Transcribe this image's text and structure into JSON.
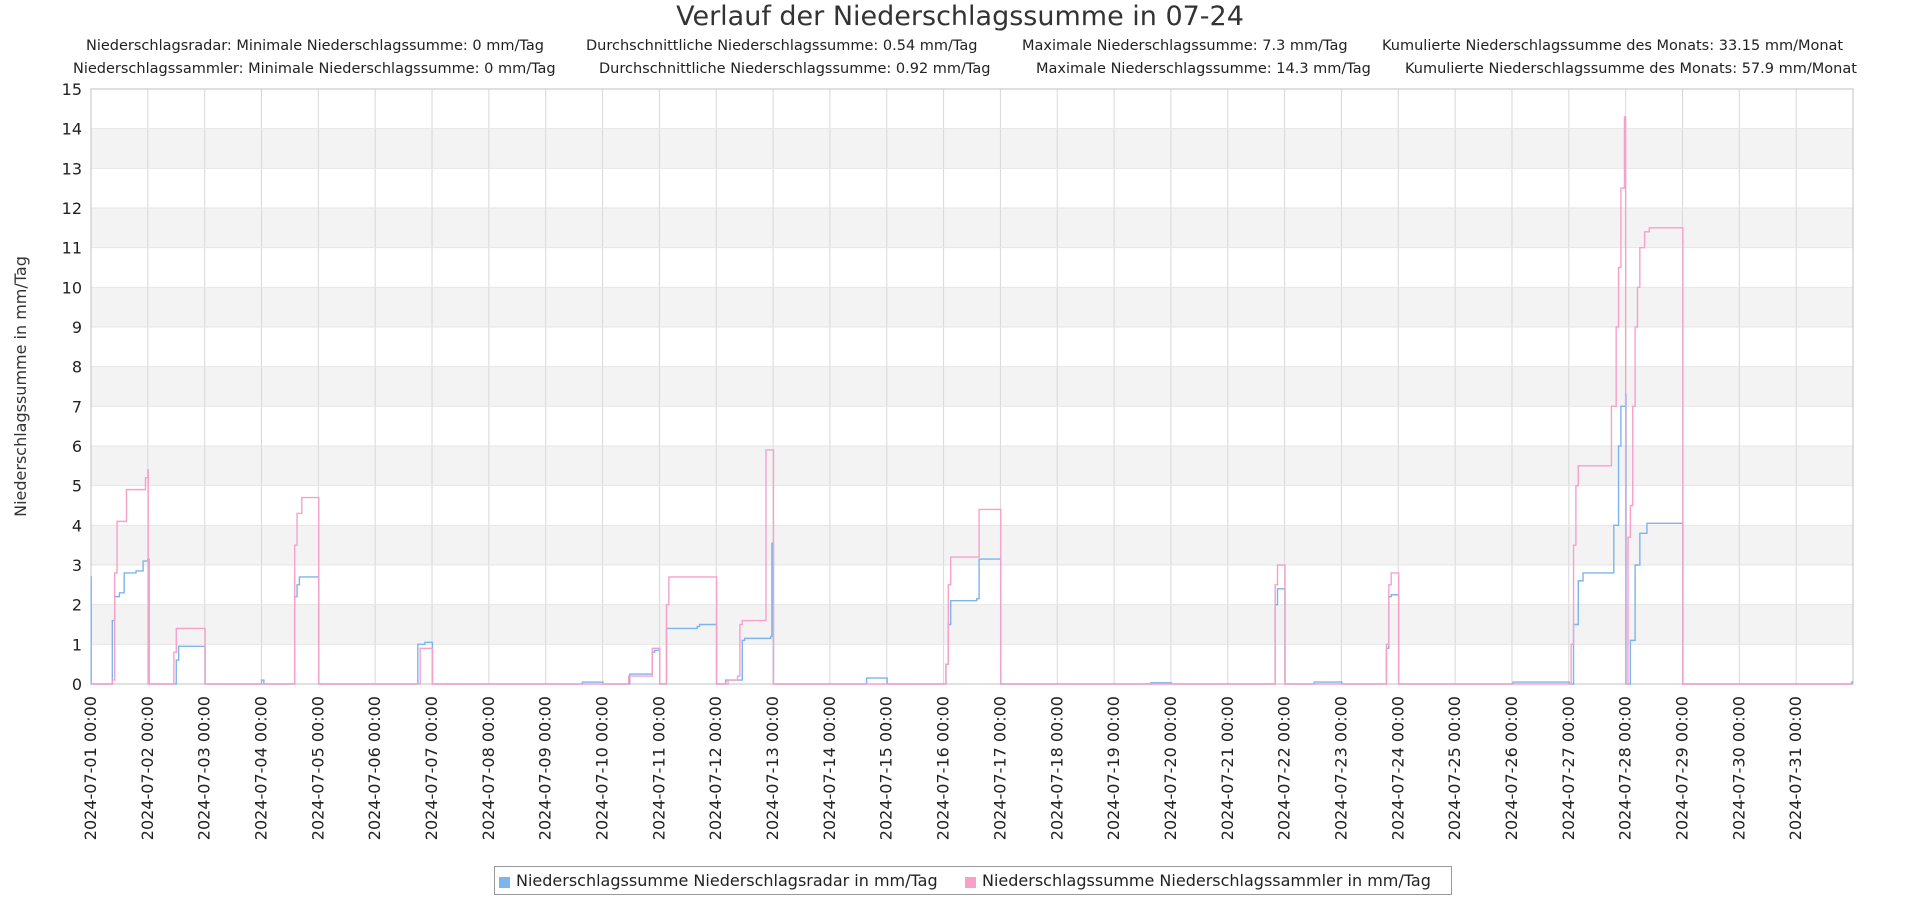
{
  "title": "Verlauf der Niederschlagssumme in 07-24",
  "stats": {
    "radar": [
      "Niederschlagsradar: Minimale Niederschlagssumme: 0 mm/Tag",
      "Durchschnittliche Niederschlagssumme: 0.54 mm/Tag",
      "Maximale Niederschlagssumme: 7.3 mm/Tag",
      "Kumulierte Niederschlagssumme des Monats: 33.15 mm/Monat"
    ],
    "sammler": [
      "Niederschlagssammler: Minimale Niederschlagssumme: 0 mm/Tag",
      "Durchschnittliche Niederschlagssumme: 0.92 mm/Tag",
      "Maximale Niederschlagssumme: 14.3 mm/Tag",
      "Kumulierte Niederschlagssumme des Monats: 57.9 mm/Monat"
    ]
  },
  "legend": {
    "radar_label": "Niederschlagssumme Niederschlagsradar in mm/Tag",
    "sammler_label": "Niederschlagssumme Niederschlagssammler in mm/Tag"
  },
  "chart_data": {
    "type": "line",
    "ylabel": "Niederschlagssumme in mm/Tag",
    "ylim": [
      0,
      15
    ],
    "yticks": [
      0,
      1,
      2,
      3,
      4,
      5,
      6,
      7,
      8,
      9,
      10,
      11,
      12,
      13,
      14,
      15
    ],
    "xlim": [
      "2024-07-01 00:00",
      "2024-08-01 00:00"
    ],
    "xticks": [
      "2024-07-01 00:00",
      "2024-07-02 00:00",
      "2024-07-03 00:00",
      "2024-07-04 00:00",
      "2024-07-05 00:00",
      "2024-07-06 00:00",
      "2024-07-07 00:00",
      "2024-07-08 00:00",
      "2024-07-09 00:00",
      "2024-07-10 00:00",
      "2024-07-11 00:00",
      "2024-07-12 00:00",
      "2024-07-13 00:00",
      "2024-07-14 00:00",
      "2024-07-15 00:00",
      "2024-07-16 00:00",
      "2024-07-17 00:00",
      "2024-07-18 00:00",
      "2024-07-19 00:00",
      "2024-07-20 00:00",
      "2024-07-21 00:00",
      "2024-07-22 00:00",
      "2024-07-23 00:00",
      "2024-07-24 00:00",
      "2024-07-25 00:00",
      "2024-07-26 00:00",
      "2024-07-27 00:00",
      "2024-07-28 00:00",
      "2024-07-29 00:00",
      "2024-07-30 00:00",
      "2024-07-31 00:00"
    ],
    "grid": true,
    "legend_position": "bottom",
    "series": [
      {
        "name": "Niederschlagssumme Niederschlagsradar in mm/Tag",
        "color": "#7cb5ec",
        "points": [
          [
            "2024-07-01 00:00",
            2.7
          ],
          [
            "2024-07-01 00:05",
            0
          ],
          [
            "2024-07-01 08:00",
            0
          ],
          [
            "2024-07-01 09:00",
            1.6
          ],
          [
            "2024-07-01 10:00",
            2.2
          ],
          [
            "2024-07-01 12:00",
            2.3
          ],
          [
            "2024-07-01 14:00",
            2.8
          ],
          [
            "2024-07-01 19:00",
            2.85
          ],
          [
            "2024-07-01 22:00",
            3.1
          ],
          [
            "2024-07-02 00:00",
            3.15
          ],
          [
            "2024-07-02 00:30",
            0
          ],
          [
            "2024-07-02 11:00",
            0
          ],
          [
            "2024-07-02 12:00",
            0.6
          ],
          [
            "2024-07-02 13:00",
            0.95
          ],
          [
            "2024-07-03 00:00",
            0.95
          ],
          [
            "2024-07-03 00:10",
            0
          ],
          [
            "2024-07-03 23:00",
            0
          ],
          [
            "2024-07-04 00:00",
            0.1
          ],
          [
            "2024-07-04 01:00",
            0
          ],
          [
            "2024-07-04 13:00",
            0
          ],
          [
            "2024-07-04 14:00",
            2.2
          ],
          [
            "2024-07-04 15:00",
            2.5
          ],
          [
            "2024-07-04 16:00",
            2.7
          ],
          [
            "2024-07-05 00:00",
            2.7
          ],
          [
            "2024-07-05 00:10",
            0
          ],
          [
            "2024-07-06 17:00",
            0
          ],
          [
            "2024-07-06 18:00",
            1.0
          ],
          [
            "2024-07-06 21:00",
            1.05
          ],
          [
            "2024-07-07 00:00",
            1.05
          ],
          [
            "2024-07-07 00:10",
            0
          ],
          [
            "2024-07-09 15:00",
            0
          ],
          [
            "2024-07-09 15:30",
            0.05
          ],
          [
            "2024-07-10 00:00",
            0.05
          ],
          [
            "2024-07-10 00:10",
            0
          ],
          [
            "2024-07-10 11:00",
            0
          ],
          [
            "2024-07-10 11:30",
            0.25
          ],
          [
            "2024-07-10 20:00",
            0.25
          ],
          [
            "2024-07-10 21:00",
            0.8
          ],
          [
            "2024-07-10 22:00",
            0.85
          ],
          [
            "2024-07-11 00:00",
            0.85
          ],
          [
            "2024-07-11 00:10",
            0
          ],
          [
            "2024-07-11 02:00",
            0
          ],
          [
            "2024-07-11 03:00",
            1.4
          ],
          [
            "2024-07-11 16:00",
            1.45
          ],
          [
            "2024-07-11 17:00",
            1.5
          ],
          [
            "2024-07-12 00:00",
            1.5
          ],
          [
            "2024-07-12 00:10",
            0
          ],
          [
            "2024-07-12 03:00",
            0
          ],
          [
            "2024-07-12 04:00",
            0.1
          ],
          [
            "2024-07-12 10:00",
            0.1
          ],
          [
            "2024-07-12 11:00",
            1.1
          ],
          [
            "2024-07-12 12:00",
            1.15
          ],
          [
            "2024-07-12 23:00",
            1.2
          ],
          [
            "2024-07-12 23:30",
            3.55
          ],
          [
            "2024-07-13 00:00",
            3.55
          ],
          [
            "2024-07-13 00:10",
            0
          ],
          [
            "2024-07-14 15:00",
            0
          ],
          [
            "2024-07-14 15:30",
            0.15
          ],
          [
            "2024-07-15 00:00",
            0.15
          ],
          [
            "2024-07-15 00:10",
            0
          ],
          [
            "2024-07-16 00:00",
            0
          ],
          [
            "2024-07-16 01:00",
            0.5
          ],
          [
            "2024-07-16 02:00",
            1.5
          ],
          [
            "2024-07-16 03:00",
            2.1
          ],
          [
            "2024-07-16 14:00",
            2.15
          ],
          [
            "2024-07-16 15:00",
            3.15
          ],
          [
            "2024-07-17 00:00",
            3.15
          ],
          [
            "2024-07-17 00:10",
            0
          ],
          [
            "2024-07-19 15:00",
            0
          ],
          [
            "2024-07-19 15:30",
            0.03
          ],
          [
            "2024-07-20 00:00",
            0.03
          ],
          [
            "2024-07-20 00:10",
            0
          ],
          [
            "2024-07-21 19:00",
            0
          ],
          [
            "2024-07-21 20:00",
            2.0
          ],
          [
            "2024-07-21 21:00",
            2.4
          ],
          [
            "2024-07-22 00:00",
            2.4
          ],
          [
            "2024-07-22 00:10",
            0
          ],
          [
            "2024-07-22 12:00",
            0
          ],
          [
            "2024-07-22 12:30",
            0.05
          ],
          [
            "2024-07-23 00:00",
            0.05
          ],
          [
            "2024-07-23 00:10",
            0
          ],
          [
            "2024-07-23 18:00",
            0
          ],
          [
            "2024-07-23 19:00",
            0.9
          ],
          [
            "2024-07-23 20:00",
            2.2
          ],
          [
            "2024-07-23 21:00",
            2.25
          ],
          [
            "2024-07-24 00:00",
            2.25
          ],
          [
            "2024-07-24 00:10",
            0
          ],
          [
            "2024-07-26 00:00",
            0
          ],
          [
            "2024-07-26 00:30",
            0.05
          ],
          [
            "2024-07-27 00:00",
            0.05
          ],
          [
            "2024-07-27 00:10",
            0
          ],
          [
            "2024-07-27 01:00",
            0
          ],
          [
            "2024-07-27 02:00",
            1.5
          ],
          [
            "2024-07-27 04:00",
            2.6
          ],
          [
            "2024-07-27 06:00",
            2.8
          ],
          [
            "2024-07-27 17:00",
            2.8
          ],
          [
            "2024-07-27 19:00",
            4.0
          ],
          [
            "2024-07-27 21:00",
            6.0
          ],
          [
            "2024-07-27 22:00",
            7.0
          ],
          [
            "2024-07-28 00:00",
            7.3
          ],
          [
            "2024-07-28 00:10",
            0
          ],
          [
            "2024-07-28 01:00",
            0
          ],
          [
            "2024-07-28 02:00",
            1.1
          ],
          [
            "2024-07-28 04:00",
            3.0
          ],
          [
            "2024-07-28 06:00",
            3.8
          ],
          [
            "2024-07-28 09:00",
            4.05
          ],
          [
            "2024-07-29 00:00",
            4.05
          ],
          [
            "2024-07-29 00:10",
            0
          ],
          [
            "2024-07-31 23:00",
            0
          ],
          [
            "2024-07-31 23:30",
            0.05
          ],
          [
            "2024-08-01 00:00",
            0.05
          ]
        ]
      },
      {
        "name": "Niederschlagssumme Niederschlagssammler in mm/Tag",
        "color": "#f7a1c9",
        "points": [
          [
            "2024-07-01 00:00",
            0
          ],
          [
            "2024-07-01 08:00",
            0
          ],
          [
            "2024-07-01 09:00",
            0.1
          ],
          [
            "2024-07-01 10:00",
            2.8
          ],
          [
            "2024-07-01 11:00",
            4.1
          ],
          [
            "2024-07-01 14:00",
            4.1
          ],
          [
            "2024-07-01 15:00",
            4.9
          ],
          [
            "2024-07-01 22:00",
            4.9
          ],
          [
            "2024-07-01 23:00",
            5.2
          ],
          [
            "2024-07-02 00:00",
            5.4
          ],
          [
            "2024-07-02 00:10",
            0
          ],
          [
            "2024-07-02 10:00",
            0
          ],
          [
            "2024-07-02 11:00",
            0.8
          ],
          [
            "2024-07-02 12:00",
            1.4
          ],
          [
            "2024-07-03 00:00",
            1.4
          ],
          [
            "2024-07-03 00:10",
            0
          ],
          [
            "2024-07-04 13:00",
            0
          ],
          [
            "2024-07-04 14:00",
            3.5
          ],
          [
            "2024-07-04 15:00",
            4.3
          ],
          [
            "2024-07-04 17:00",
            4.7
          ],
          [
            "2024-07-05 00:00",
            4.7
          ],
          [
            "2024-07-05 00:10",
            0
          ],
          [
            "2024-07-06 18:00",
            0
          ],
          [
            "2024-07-06 19:00",
            0.9
          ],
          [
            "2024-07-07 00:00",
            0.9
          ],
          [
            "2024-07-07 00:10",
            0
          ],
          [
            "2024-07-10 10:00",
            0
          ],
          [
            "2024-07-10 11:00",
            0.2
          ],
          [
            "2024-07-10 20:00",
            0.2
          ],
          [
            "2024-07-10 21:00",
            0.9
          ],
          [
            "2024-07-11 00:00",
            0.9
          ],
          [
            "2024-07-11 00:10",
            0
          ],
          [
            "2024-07-11 02:00",
            0
          ],
          [
            "2024-07-11 03:00",
            2.0
          ],
          [
            "2024-07-11 04:00",
            2.7
          ],
          [
            "2024-07-12 00:00",
            2.7
          ],
          [
            "2024-07-12 00:10",
            0
          ],
          [
            "2024-07-12 04:00",
            0
          ],
          [
            "2024-07-12 05:00",
            0.1
          ],
          [
            "2024-07-12 09:00",
            0.2
          ],
          [
            "2024-07-12 10:00",
            1.5
          ],
          [
            "2024-07-12 11:00",
            1.6
          ],
          [
            "2024-07-12 20:00",
            1.6
          ],
          [
            "2024-07-12 21:00",
            5.9
          ],
          [
            "2024-07-13 00:00",
            5.9
          ],
          [
            "2024-07-13 00:10",
            0
          ],
          [
            "2024-07-16 00:00",
            0
          ],
          [
            "2024-07-16 01:00",
            0.5
          ],
          [
            "2024-07-16 02:00",
            2.5
          ],
          [
            "2024-07-16 03:00",
            3.2
          ],
          [
            "2024-07-16 14:00",
            3.2
          ],
          [
            "2024-07-16 15:00",
            4.4
          ],
          [
            "2024-07-17 00:00",
            4.4
          ],
          [
            "2024-07-17 00:10",
            0
          ],
          [
            "2024-07-21 19:00",
            0
          ],
          [
            "2024-07-21 20:00",
            2.5
          ],
          [
            "2024-07-21 21:00",
            3.0
          ],
          [
            "2024-07-22 00:00",
            3.0
          ],
          [
            "2024-07-22 00:10",
            0
          ],
          [
            "2024-07-23 18:00",
            0
          ],
          [
            "2024-07-23 19:00",
            1.0
          ],
          [
            "2024-07-23 20:00",
            2.5
          ],
          [
            "2024-07-23 21:00",
            2.8
          ],
          [
            "2024-07-24 00:00",
            2.8
          ],
          [
            "2024-07-24 00:10",
            0
          ],
          [
            "2024-07-27 00:00",
            0
          ],
          [
            "2024-07-27 01:00",
            1.0
          ],
          [
            "2024-07-27 02:00",
            3.5
          ],
          [
            "2024-07-27 03:00",
            5.0
          ],
          [
            "2024-07-27 04:00",
            5.5
          ],
          [
            "2024-07-27 16:00",
            5.5
          ],
          [
            "2024-07-27 18:00",
            7.0
          ],
          [
            "2024-07-27 20:00",
            9.0
          ],
          [
            "2024-07-27 21:00",
            10.5
          ],
          [
            "2024-07-27 22:00",
            12.5
          ],
          [
            "2024-07-27 23:30",
            14.3
          ],
          [
            "2024-07-28 00:00",
            0
          ],
          [
            "2024-07-28 00:30",
            0
          ],
          [
            "2024-07-28 01:00",
            3.7
          ],
          [
            "2024-07-28 02:00",
            4.5
          ],
          [
            "2024-07-28 03:00",
            7.0
          ],
          [
            "2024-07-28 04:00",
            9.0
          ],
          [
            "2024-07-28 05:00",
            10.0
          ],
          [
            "2024-07-28 06:00",
            11.0
          ],
          [
            "2024-07-28 08:00",
            11.4
          ],
          [
            "2024-07-28 10:00",
            11.5
          ],
          [
            "2024-07-29 00:00",
            11.5
          ],
          [
            "2024-07-29 00:10",
            0
          ],
          [
            "2024-08-01 00:00",
            0
          ]
        ]
      }
    ]
  }
}
